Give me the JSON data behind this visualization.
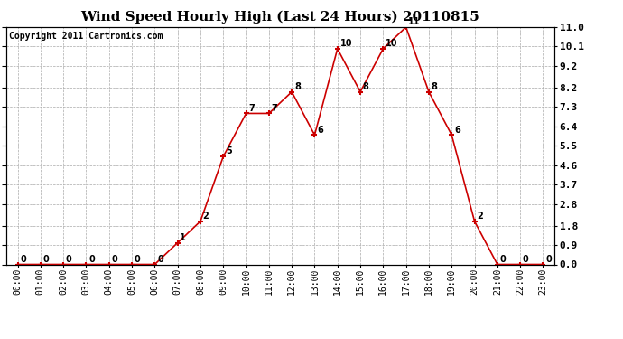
{
  "title": "Wind Speed Hourly High (Last 24 Hours) 20110815",
  "copyright": "Copyright 2011 Cartronics.com",
  "hours": [
    "00:00",
    "01:00",
    "02:00",
    "03:00",
    "04:00",
    "05:00",
    "06:00",
    "07:00",
    "08:00",
    "09:00",
    "10:00",
    "11:00",
    "12:00",
    "13:00",
    "14:00",
    "15:00",
    "16:00",
    "17:00",
    "18:00",
    "19:00",
    "20:00",
    "21:00",
    "22:00",
    "23:00"
  ],
  "values": [
    0,
    0,
    0,
    0,
    0,
    0,
    0,
    1,
    2,
    5,
    7,
    7,
    8,
    6,
    10,
    8,
    10,
    11,
    8,
    6,
    2,
    0,
    0,
    0
  ],
  "line_color": "#cc0000",
  "marker_color": "#cc0000",
  "bg_color": "#ffffff",
  "plot_bg_color": "#ffffff",
  "grid_color": "#aaaaaa",
  "title_fontsize": 11,
  "copyright_fontsize": 7,
  "label_fontsize": 7,
  "annot_fontsize": 7,
  "ylim": [
    0.0,
    11.0
  ],
  "yticks": [
    0.0,
    0.9,
    1.8,
    2.8,
    3.7,
    4.6,
    5.5,
    6.4,
    7.3,
    8.2,
    9.2,
    10.1,
    11.0
  ]
}
